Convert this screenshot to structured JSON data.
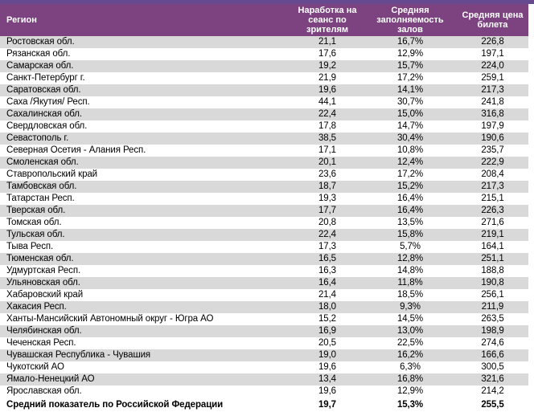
{
  "colors": {
    "top_stripe": "#66498F",
    "header_bg": "#7C4380",
    "header_text": "#FFFFFF",
    "row_alt_bg": "#D9D9D9",
    "row_bg": "#FFFFFF",
    "body_text": "#000000"
  },
  "table": {
    "columns": [
      {
        "label": "Регион"
      },
      {
        "label": "Наработка на сеанс по зрителям"
      },
      {
        "label": "Средняя заполняемость залов"
      },
      {
        "label": "Средняя цена билета"
      }
    ],
    "rows": [
      [
        "Ростовская обл.",
        "21,1",
        "16,7%",
        "226,8"
      ],
      [
        "Рязанская обл.",
        "17,6",
        "12,9%",
        "197,1"
      ],
      [
        "Самарская обл.",
        "19,2",
        "15,7%",
        "224,0"
      ],
      [
        "Санкт-Петербург г.",
        "21,9",
        "17,2%",
        "259,1"
      ],
      [
        "Саратовская обл.",
        "19,6",
        "14,1%",
        "217,3"
      ],
      [
        "Саха /Якутия/ Респ.",
        "44,1",
        "30,7%",
        "241,8"
      ],
      [
        "Сахалинская обл.",
        "22,4",
        "15,0%",
        "316,8"
      ],
      [
        "Свердловская обл.",
        "17,8",
        "14,7%",
        "197,9"
      ],
      [
        "Севастополь г.",
        "38,5",
        "30,4%",
        "190,6"
      ],
      [
        "Северная Осетия - Алания Респ.",
        "17,1",
        "10,8%",
        "235,7"
      ],
      [
        "Смоленская обл.",
        "20,1",
        "12,4%",
        "222,9"
      ],
      [
        "Ставропольский край",
        "23,6",
        "17,2%",
        "208,4"
      ],
      [
        "Тамбовская обл.",
        "18,7",
        "15,2%",
        "217,3"
      ],
      [
        "Татарстан Респ.",
        "19,3",
        "16,4%",
        "215,1"
      ],
      [
        "Тверская обл.",
        "17,7",
        "16,4%",
        "226,3"
      ],
      [
        "Томская обл.",
        "20,8",
        "13,5%",
        "271,6"
      ],
      [
        "Тульская обл.",
        "22,4",
        "15,8%",
        "219,1"
      ],
      [
        "Тыва Респ.",
        "17,3",
        "5,7%",
        "164,1"
      ],
      [
        "Тюменская обл.",
        "16,5",
        "12,8%",
        "251,1"
      ],
      [
        "Удмуртская Респ.",
        "16,3",
        "14,8%",
        "188,8"
      ],
      [
        "Ульяновская обл.",
        "16,4",
        "11,8%",
        "190,8"
      ],
      [
        "Хабаровский край",
        "21,4",
        "18,5%",
        "256,1"
      ],
      [
        "Хакасия Респ.",
        "18,0",
        "9,3%",
        "211,9"
      ],
      [
        "Ханты-Мансийский Автономный округ - Югра АО",
        "15,2",
        "14,5%",
        "263,5"
      ],
      [
        "Челябинская обл.",
        "16,9",
        "13,0%",
        "198,9"
      ],
      [
        "Чеченская Респ.",
        "20,5",
        "22,5%",
        "274,6"
      ],
      [
        "Чувашская Республика - Чувашия",
        "19,0",
        "16,2%",
        "166,6"
      ],
      [
        "Чукотский АО",
        "19,6",
        "6,3%",
        "300,5"
      ],
      [
        "Ямало-Ненецкий АО",
        "13,4",
        "16,8%",
        "321,6"
      ],
      [
        "Ярославская обл.",
        "19,6",
        "12,9%",
        "214,2"
      ]
    ],
    "summary": [
      "Средний показатель по Российской Федерации",
      "19,7",
      "15,3%",
      "255,5"
    ]
  }
}
